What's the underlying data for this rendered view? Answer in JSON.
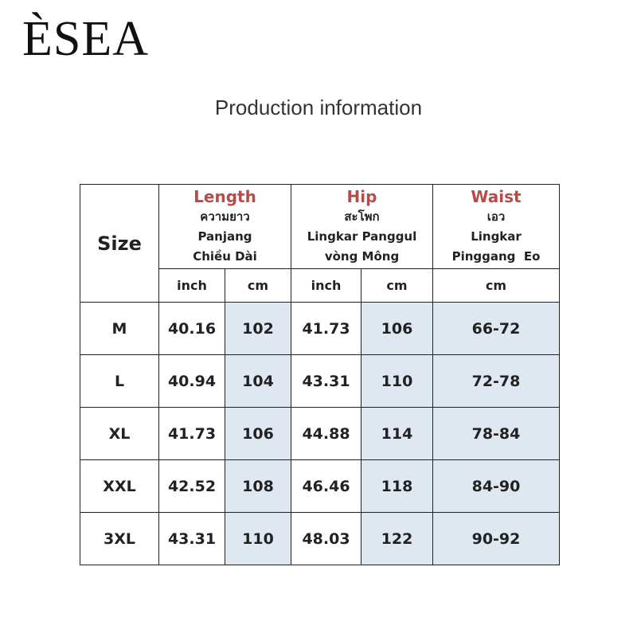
{
  "logo": "ÈSEA",
  "title": "Production information",
  "table": {
    "size_header": "Size",
    "groups": [
      {
        "name": "Length",
        "lines": [
          "ความยาว",
          "Panjang",
          "Chiều Dài"
        ]
      },
      {
        "name": "Hip",
        "lines": [
          "สะโพก",
          "Lingkar Panggul",
          "vòng Mông"
        ]
      },
      {
        "name": "Waist",
        "lines": [
          "เอว",
          "Lingkar",
          "Pinggang  Eo"
        ]
      }
    ],
    "units": [
      "inch",
      "cm",
      "inch",
      "cm",
      "cm"
    ],
    "rows": [
      [
        "M",
        40.16,
        102,
        41.73,
        106,
        "66-72"
      ],
      [
        "L",
        40.94,
        104,
        43.31,
        110,
        "72-78"
      ],
      [
        "XL",
        41.73,
        106,
        44.88,
        114,
        "78-84"
      ],
      [
        "XXL",
        42.52,
        108,
        46.46,
        118,
        "84-90"
      ],
      [
        "3XL",
        43.31,
        110,
        48.03,
        122,
        "90-92"
      ]
    ]
  }
}
